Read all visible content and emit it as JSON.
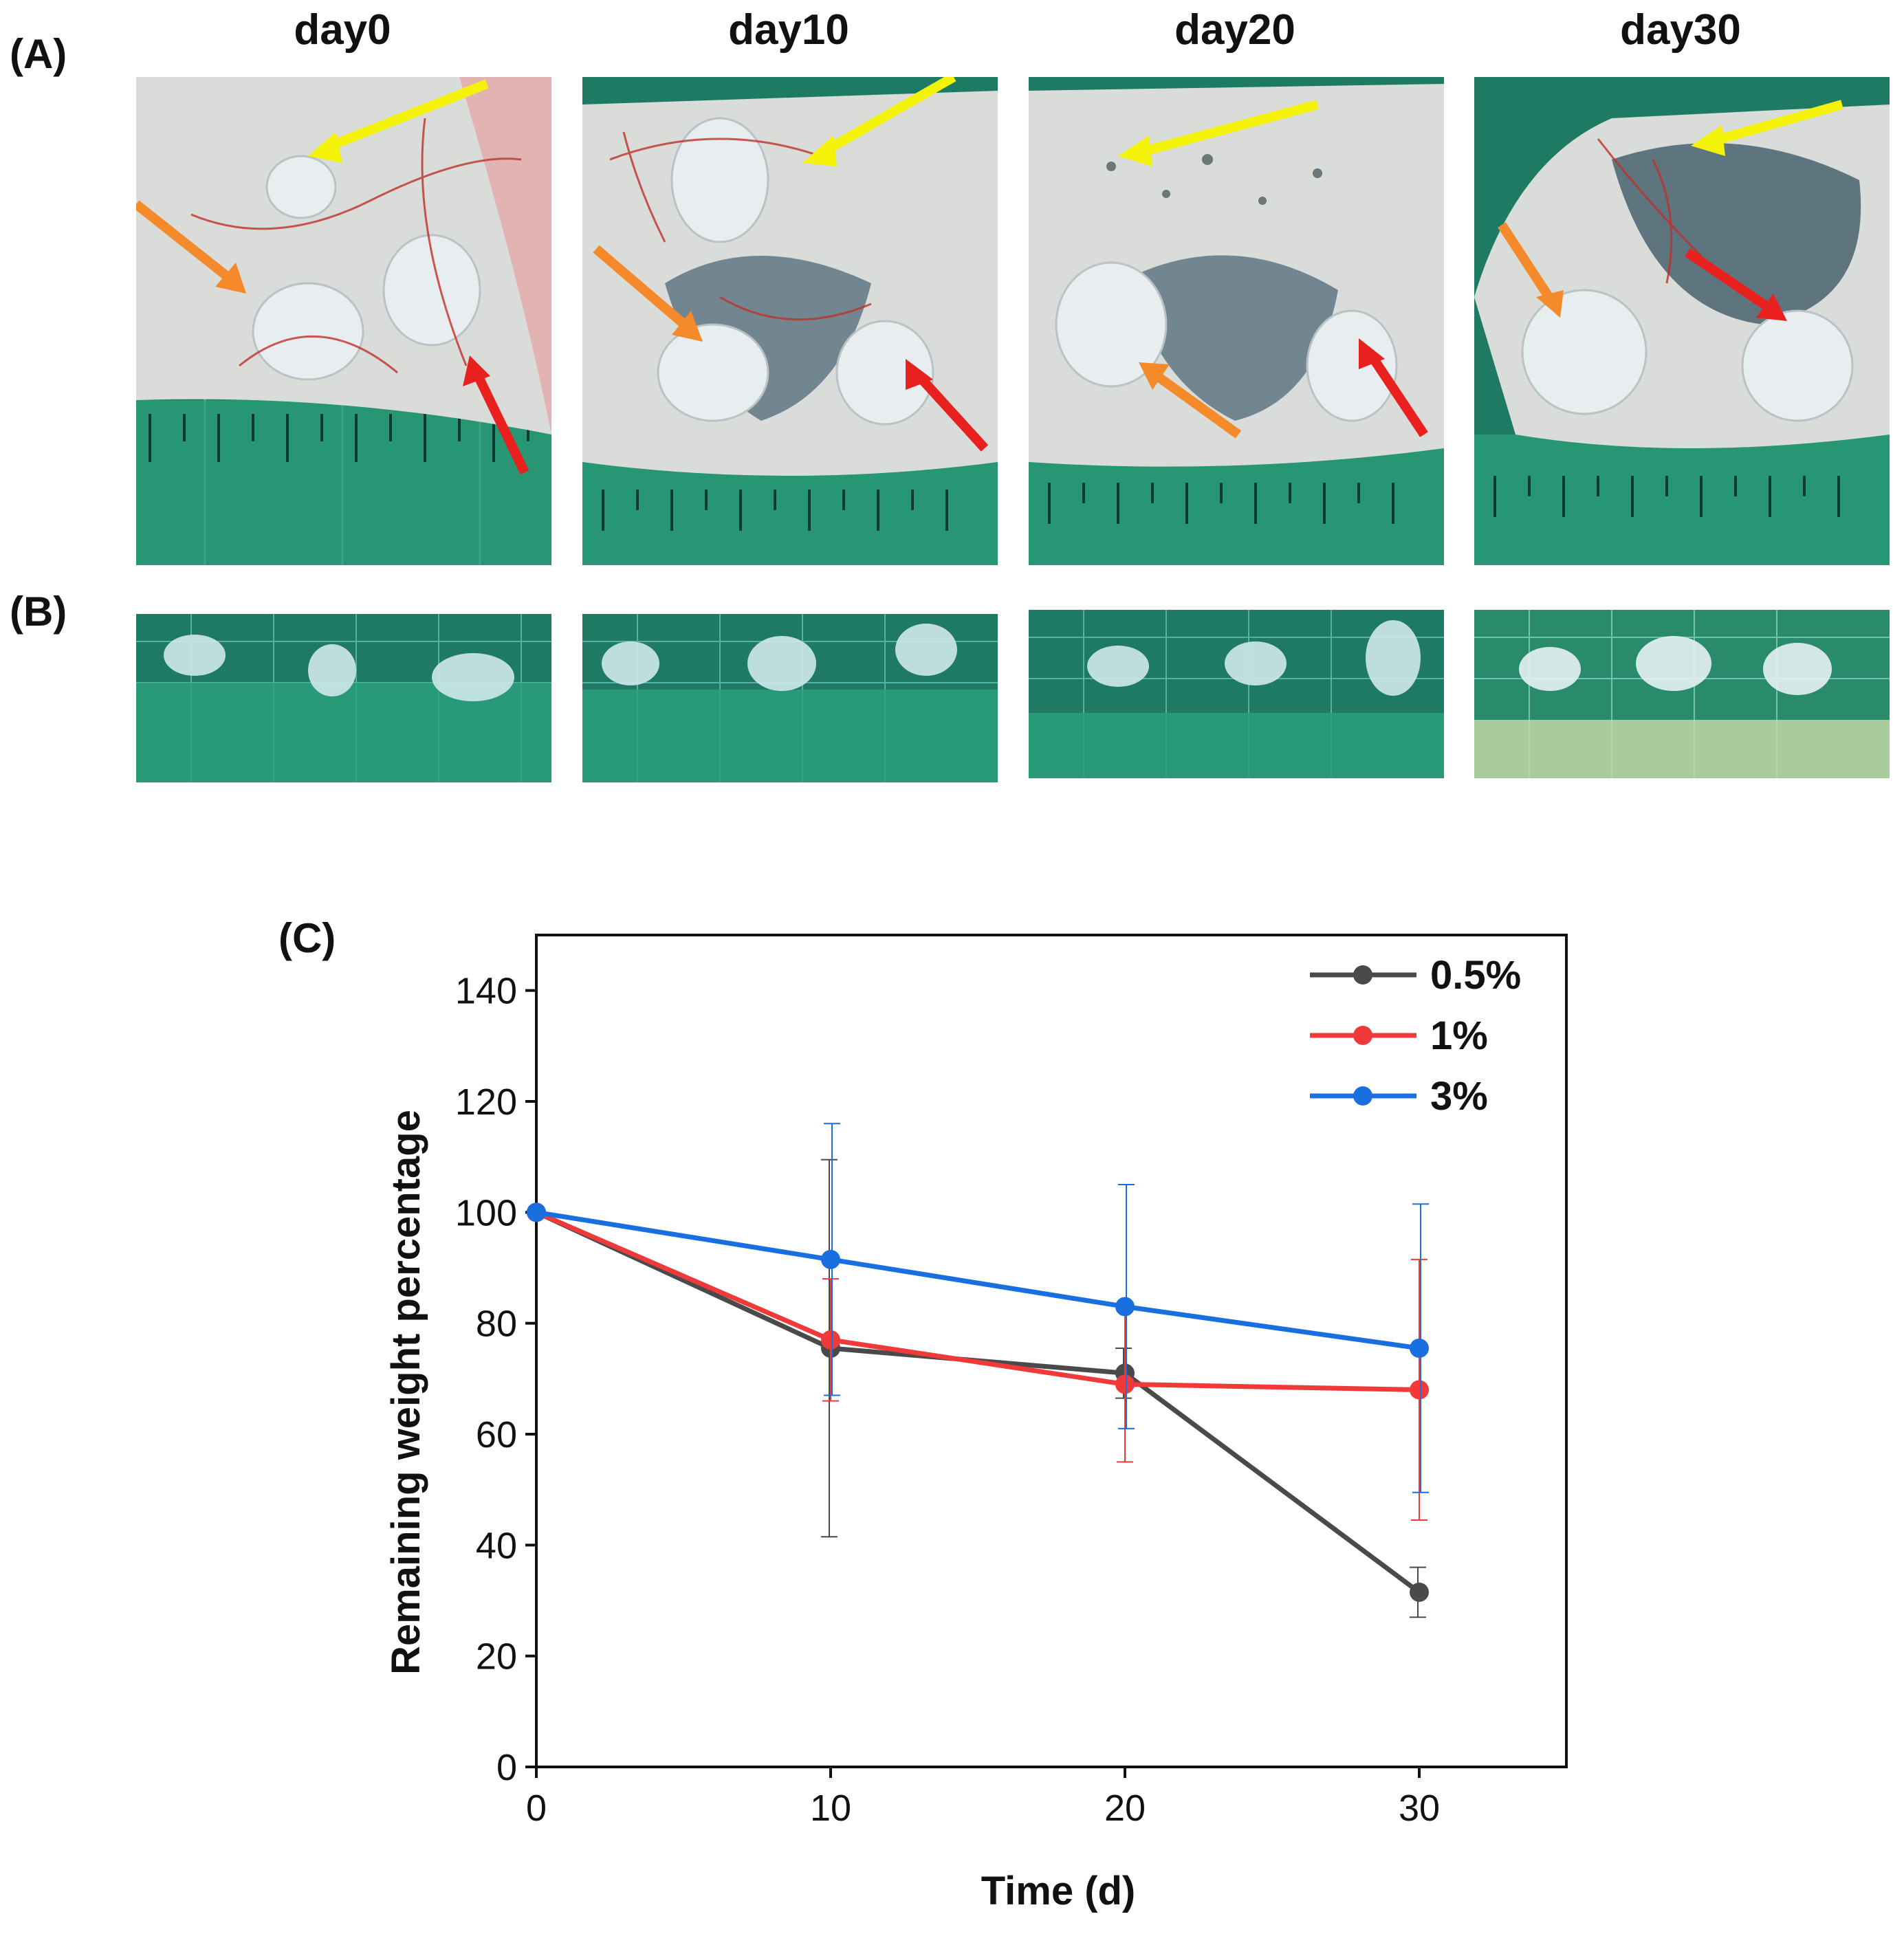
{
  "panels": {
    "a_label": "(A)",
    "b_label": "(B)",
    "c_label": "(C)"
  },
  "days": [
    "day0",
    "day10",
    "day20",
    "day30"
  ],
  "colors": {
    "tissue": "#d9dcd8",
    "mat": "#1f7a64",
    "grid": "#7fd6c6",
    "arrow_yellow": "#f5f20a",
    "arrow_orange": "#f58a2a",
    "arrow_red": "#e8201e",
    "gel": "#cfe8ec"
  },
  "chart_data": {
    "type": "line",
    "title": "",
    "xlabel": "Time (d)",
    "ylabel": "Remaining weight percentage",
    "x": [
      0,
      10,
      20,
      30
    ],
    "xlim": [
      0,
      35
    ],
    "ylim": [
      0,
      150
    ],
    "xticks": [
      0,
      10,
      20,
      30
    ],
    "yticks": [
      0,
      20,
      40,
      60,
      80,
      100,
      120,
      140
    ],
    "legend_position": "top-right",
    "series": [
      {
        "name": "0.5%",
        "color": "#4a4a4a",
        "values": [
          100,
          75.5,
          71,
          31.5
        ],
        "errors": [
          0,
          34,
          4.5,
          4.5
        ]
      },
      {
        "name": "1%",
        "color": "#f03a3a",
        "values": [
          100,
          77,
          69,
          68
        ],
        "errors": [
          0,
          11,
          14,
          23.5
        ]
      },
      {
        "name": "3%",
        "color": "#1a6fe0",
        "values": [
          100,
          91.5,
          83,
          75.5
        ],
        "errors": [
          0,
          24.5,
          22,
          26
        ]
      }
    ]
  }
}
